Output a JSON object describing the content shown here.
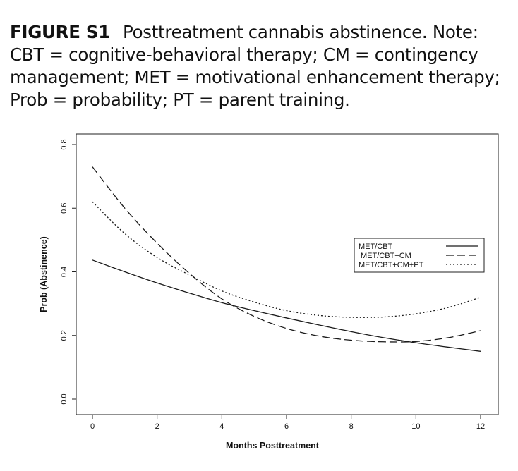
{
  "caption": {
    "label": "FIGURE S1",
    "text": "Posttreatment cannabis abstinence. Note: CBT = cognitive-behavioral therapy; CM = contingency management; MET = motivational enhancement therapy; Prob = probability; PT = parent training."
  },
  "chart_data": {
    "type": "line",
    "title": "",
    "xlabel": "Months Posttreatment",
    "ylabel": "Prob (Abstinence)",
    "xlim": [
      0,
      12
    ],
    "ylim": [
      0,
      0.8
    ],
    "xticks": [
      "0",
      "2",
      "4",
      "6",
      "8",
      "10",
      "12"
    ],
    "yticks": [
      "0.0",
      "0.2",
      "0.4",
      "0.6",
      "0.8"
    ],
    "grid": false,
    "legend_position": "right",
    "x": [
      0,
      1,
      2,
      3,
      4,
      5,
      6,
      7,
      8,
      9,
      10,
      11,
      12
    ],
    "series": [
      {
        "name": "MET/CBT",
        "style": "solid",
        "values": [
          0.437,
          0.4,
          0.365,
          0.333,
          0.303,
          0.278,
          0.255,
          0.233,
          0.212,
          0.193,
          0.177,
          0.163,
          0.15
        ]
      },
      {
        "name": "MET/CBT+CM",
        "style": "dashed",
        "values": [
          0.73,
          0.6,
          0.49,
          0.395,
          0.315,
          0.26,
          0.222,
          0.198,
          0.185,
          0.18,
          0.181,
          0.193,
          0.215
        ]
      },
      {
        "name": "MET/CBT+CM+PT",
        "style": "dotted",
        "values": [
          0.62,
          0.52,
          0.445,
          0.39,
          0.34,
          0.305,
          0.278,
          0.263,
          0.257,
          0.258,
          0.268,
          0.288,
          0.32
        ]
      }
    ]
  }
}
